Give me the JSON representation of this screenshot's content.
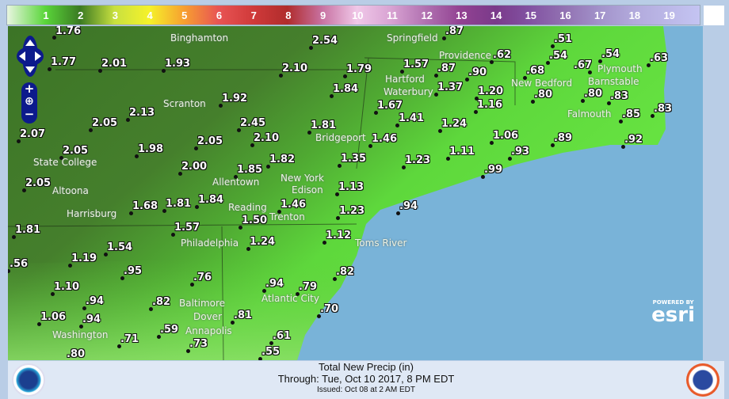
{
  "legend": {
    "labels": [
      "1",
      "2",
      "3",
      "4",
      "5",
      "6",
      "7",
      "8",
      "9",
      "10",
      "11",
      "12",
      "13",
      "14",
      "15",
      "16",
      "17",
      "18",
      "19"
    ]
  },
  "map": {
    "values": [
      "1.76",
      "2.54",
      "1.77",
      "2.01",
      "1.93",
      "2.10",
      "1.79",
      "1.84",
      "1.92",
      "2.13",
      "2.05",
      "2.07",
      "2.45",
      "1.81",
      "2.05",
      "2.10",
      "2.05",
      "1.98",
      "1.82",
      "2.00",
      "1.85",
      "1.35",
      "2.05",
      "1.13",
      "1.68",
      "1.81",
      "1.84",
      "1.46",
      "1.23",
      "1.50",
      "1.57",
      "1.81",
      "1.54",
      "1.24",
      "1.12",
      "1.19",
      ".56",
      ".95",
      ".76",
      ".82",
      "1.10",
      ".94",
      ".79",
      ".94",
      ".82",
      "1.06",
      ".94",
      ".70",
      ".81",
      ".59",
      ".61",
      ".71",
      ".73",
      ".80",
      ".55",
      ".87",
      "1.57",
      ".87",
      ".90",
      ".62",
      ".51",
      ".54",
      ".54",
      ".68",
      ".67",
      ".63",
      "1.37",
      "1.20",
      ".80",
      ".80",
      ".83",
      "1.67",
      "1.16",
      ".85",
      ".83",
      "1.41",
      "1.24",
      "1.46",
      "1.06",
      ".89",
      ".92",
      "1.11",
      ".93",
      "1.23",
      ".99",
      ".94"
    ],
    "cities": [
      "Binghamton",
      "Springfield",
      "Providence",
      "Plymouth",
      "New Bedford",
      "Barnstable",
      "Falmouth",
      "Hartford",
      "Waterbury",
      "Bridgeport",
      "Scranton",
      "State College",
      "New York",
      "Edison",
      "Allentown",
      "Reading",
      "Harrisburg",
      "Trenton",
      "Philadelphia",
      "Toms River",
      "Altoona",
      "Baltimore",
      "Atlantic City",
      "Dover",
      "Annapolis",
      "Washington"
    ],
    "colors": {
      "ocean": "#79b3d8",
      "land_high": "#3e7a28",
      "land_low": "#5fe03c"
    },
    "attribution": {
      "powered_by": "POWERED BY",
      "brand": "esri"
    }
  },
  "controls": {
    "zoom_in": "+",
    "zoom_out": "−"
  },
  "footer": {
    "title": "Total New Precip (in)",
    "through": "Through: Tue, Oct 10 2017,   8 PM EDT",
    "issued": "Issued: Oct 08 at 2 AM EDT",
    "left_logo": "NOAA",
    "right_logo": "National Weather Service"
  }
}
